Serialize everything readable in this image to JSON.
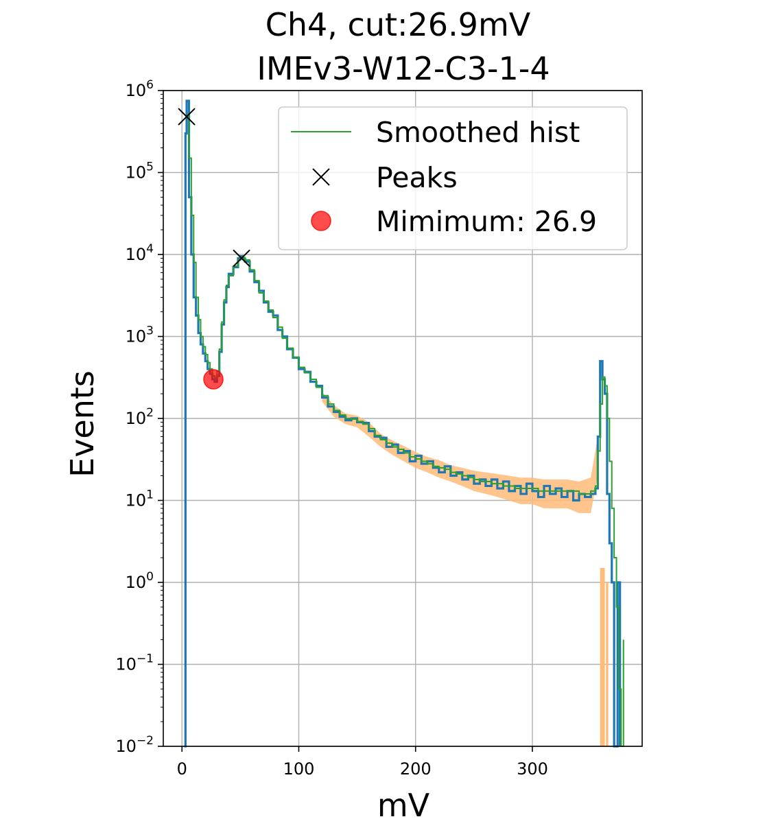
{
  "chart_data": {
    "type": "histogram",
    "title_lines": [
      "Ch4, cut:26.9mV",
      "IMEv3-W12-C3-1-4"
    ],
    "xlabel": "mV",
    "ylabel": "Events",
    "yscale": "log",
    "xlim": [
      -16,
      394
    ],
    "ylim": [
      0.01,
      1000000
    ],
    "xticks": [
      0,
      100,
      200,
      300
    ],
    "yticks": [
      0.01,
      0.1,
      1,
      10,
      100,
      1000,
      10000,
      100000,
      1000000
    ],
    "ytick_labels": [
      {
        "base": "10",
        "exp": "−2"
      },
      {
        "base": "10",
        "exp": "−1"
      },
      {
        "base": "10",
        "exp": "0"
      },
      {
        "base": "10",
        "exp": "1"
      },
      {
        "base": "10",
        "exp": "2"
      },
      {
        "base": "10",
        "exp": "3"
      },
      {
        "base": "10",
        "exp": "4"
      },
      {
        "base": "10",
        "exp": "5"
      },
      {
        "base": "10",
        "exp": "6"
      }
    ],
    "grid": true,
    "legend_position": "top-right",
    "colors": {
      "hist": "#1f77b4",
      "smoothed": "#2ca02c",
      "band": "#ffbb78",
      "peaks": "#000000",
      "minimum": "#ff0000"
    },
    "legend": [
      {
        "label": "Smoothed hist",
        "marker": "line"
      },
      {
        "label": "Peaks",
        "marker": "x"
      },
      {
        "label": "Mimimum: 26.9",
        "marker": "circle"
      }
    ],
    "series": [
      {
        "name": "Smoothed hist",
        "style": "step",
        "points": [
          [
            4,
            500000
          ],
          [
            6,
            150000
          ],
          [
            8,
            30000
          ],
          [
            10,
            8000
          ],
          [
            12,
            3000
          ],
          [
            14,
            1600
          ],
          [
            16,
            1000
          ],
          [
            18,
            750
          ],
          [
            20,
            600
          ],
          [
            22,
            480
          ],
          [
            24,
            400
          ],
          [
            26,
            330
          ],
          [
            28,
            310
          ],
          [
            30,
            380
          ],
          [
            32,
            700
          ],
          [
            34,
            1500
          ],
          [
            36,
            2800
          ],
          [
            38,
            4200
          ],
          [
            40,
            5500
          ],
          [
            44,
            7200
          ],
          [
            48,
            8500
          ],
          [
            50,
            9000
          ],
          [
            52,
            9200
          ],
          [
            54,
            8600
          ],
          [
            58,
            6500
          ],
          [
            62,
            4800
          ],
          [
            66,
            3400
          ],
          [
            70,
            2700
          ],
          [
            74,
            2100
          ],
          [
            78,
            1700
          ],
          [
            82,
            1300
          ],
          [
            86,
            950
          ],
          [
            90,
            720
          ],
          [
            95,
            560
          ],
          [
            100,
            420
          ],
          [
            105,
            360
          ],
          [
            110,
            300
          ],
          [
            115,
            240
          ],
          [
            120,
            190
          ],
          [
            125,
            150
          ],
          [
            130,
            125
          ],
          [
            135,
            110
          ],
          [
            140,
            100
          ],
          [
            145,
            98
          ],
          [
            150,
            92
          ],
          [
            155,
            85
          ],
          [
            160,
            75
          ],
          [
            165,
            62
          ],
          [
            170,
            55
          ],
          [
            175,
            50
          ],
          [
            180,
            45
          ],
          [
            185,
            42
          ],
          [
            190,
            38
          ],
          [
            195,
            34
          ],
          [
            200,
            32
          ],
          [
            205,
            30
          ],
          [
            210,
            28
          ],
          [
            215,
            26
          ],
          [
            220,
            25
          ],
          [
            225,
            24
          ],
          [
            230,
            22
          ],
          [
            235,
            21
          ],
          [
            240,
            20
          ],
          [
            245,
            19
          ],
          [
            250,
            18
          ],
          [
            255,
            17
          ],
          [
            260,
            17
          ],
          [
            265,
            16
          ],
          [
            270,
            16
          ],
          [
            275,
            15
          ],
          [
            280,
            15
          ],
          [
            285,
            14
          ],
          [
            290,
            14
          ],
          [
            295,
            14
          ],
          [
            300,
            14
          ],
          [
            305,
            13
          ],
          [
            310,
            13
          ],
          [
            315,
            13
          ],
          [
            320,
            13
          ],
          [
            325,
            13
          ],
          [
            330,
            13
          ],
          [
            335,
            13
          ],
          [
            340,
            12
          ],
          [
            345,
            12
          ],
          [
            350,
            13
          ],
          [
            354,
            15
          ],
          [
            356,
            40
          ],
          [
            358,
            150
          ],
          [
            360,
            320
          ],
          [
            362,
            250
          ],
          [
            364,
            100
          ],
          [
            366,
            30
          ],
          [
            368,
            8
          ],
          [
            370,
            2
          ],
          [
            372,
            0.5
          ],
          [
            374,
            0.05
          ],
          [
            376,
            0.01
          ],
          [
            378,
            0.2
          ]
        ]
      },
      {
        "name": "hist",
        "style": "step",
        "points": [
          [
            2,
            0.01
          ],
          [
            3,
            300000
          ],
          [
            4,
            750000
          ],
          [
            5,
            750000
          ],
          [
            6,
            50000
          ],
          [
            8,
            10000
          ],
          [
            10,
            3000
          ],
          [
            12,
            1800
          ],
          [
            14,
            1100
          ],
          [
            16,
            800
          ],
          [
            18,
            620
          ],
          [
            20,
            500
          ],
          [
            22,
            400
          ],
          [
            24,
            350
          ],
          [
            26,
            300
          ],
          [
            28,
            280
          ],
          [
            30,
            330
          ],
          [
            32,
            650
          ],
          [
            34,
            1400
          ],
          [
            36,
            2600
          ],
          [
            38,
            4000
          ],
          [
            40,
            5800
          ],
          [
            44,
            7000
          ],
          [
            48,
            9000
          ],
          [
            50,
            9500
          ],
          [
            52,
            8800
          ],
          [
            54,
            8200
          ],
          [
            58,
            6200
          ],
          [
            62,
            4600
          ],
          [
            66,
            3600
          ],
          [
            70,
            2600
          ],
          [
            74,
            2000
          ],
          [
            78,
            1800
          ],
          [
            82,
            1200
          ],
          [
            86,
            1000
          ],
          [
            90,
            700
          ],
          [
            95,
            550
          ],
          [
            100,
            400
          ],
          [
            105,
            370
          ],
          [
            110,
            280
          ],
          [
            115,
            250
          ],
          [
            120,
            180
          ],
          [
            125,
            140
          ],
          [
            130,
            120
          ],
          [
            135,
            105
          ],
          [
            140,
            95
          ],
          [
            145,
            100
          ],
          [
            150,
            90
          ],
          [
            155,
            88
          ],
          [
            160,
            70
          ],
          [
            165,
            60
          ],
          [
            170,
            58
          ],
          [
            175,
            45
          ],
          [
            180,
            48
          ],
          [
            185,
            38
          ],
          [
            190,
            40
          ],
          [
            195,
            30
          ],
          [
            200,
            35
          ],
          [
            205,
            28
          ],
          [
            210,
            30
          ],
          [
            215,
            25
          ],
          [
            220,
            22
          ],
          [
            225,
            26
          ],
          [
            230,
            20
          ],
          [
            235,
            22
          ],
          [
            240,
            18
          ],
          [
            245,
            20
          ],
          [
            250,
            16
          ],
          [
            255,
            18
          ],
          [
            260,
            15
          ],
          [
            265,
            18
          ],
          [
            270,
            14
          ],
          [
            275,
            17
          ],
          [
            280,
            13
          ],
          [
            285,
            15
          ],
          [
            290,
            12
          ],
          [
            295,
            16
          ],
          [
            300,
            13
          ],
          [
            305,
            11
          ],
          [
            310,
            15
          ],
          [
            315,
            12
          ],
          [
            320,
            14
          ],
          [
            325,
            11
          ],
          [
            330,
            13
          ],
          [
            335,
            10
          ],
          [
            340,
            12
          ],
          [
            345,
            11
          ],
          [
            350,
            12
          ],
          [
            354,
            14
          ],
          [
            356,
            60
          ],
          [
            358,
            500
          ],
          [
            360,
            300
          ],
          [
            362,
            200
          ],
          [
            364,
            12
          ],
          [
            366,
            3
          ],
          [
            368,
            1
          ],
          [
            370,
            0.01
          ],
          [
            373,
            1
          ],
          [
            375,
            0.01
          ]
        ]
      },
      {
        "name": "band",
        "style": "band",
        "points": [
          [
            120,
            160,
            210
          ],
          [
            130,
            105,
            145
          ],
          [
            140,
            85,
            115
          ],
          [
            150,
            78,
            108
          ],
          [
            160,
            60,
            90
          ],
          [
            170,
            45,
            65
          ],
          [
            180,
            36,
            54
          ],
          [
            190,
            30,
            46
          ],
          [
            200,
            25,
            39
          ],
          [
            210,
            22,
            34
          ],
          [
            220,
            19,
            31
          ],
          [
            230,
            17,
            27
          ],
          [
            240,
            15,
            25
          ],
          [
            250,
            13,
            23
          ],
          [
            260,
            12,
            22
          ],
          [
            270,
            11,
            21
          ],
          [
            280,
            10,
            20
          ],
          [
            290,
            9,
            19
          ],
          [
            300,
            9,
            19
          ],
          [
            310,
            8,
            18
          ],
          [
            320,
            8,
            18
          ],
          [
            330,
            8,
            18
          ],
          [
            340,
            7,
            17
          ],
          [
            350,
            7,
            19
          ],
          [
            356,
            20,
            60
          ]
        ]
      }
    ],
    "orange_bars": [
      [
        358,
        362,
        1.5
      ],
      [
        363,
        365,
        1
      ]
    ],
    "peaks": [
      {
        "x": 4,
        "y": 480000
      },
      {
        "x": 51,
        "y": 9000
      }
    ],
    "minimum": {
      "x": 26.9,
      "y": 300
    }
  }
}
